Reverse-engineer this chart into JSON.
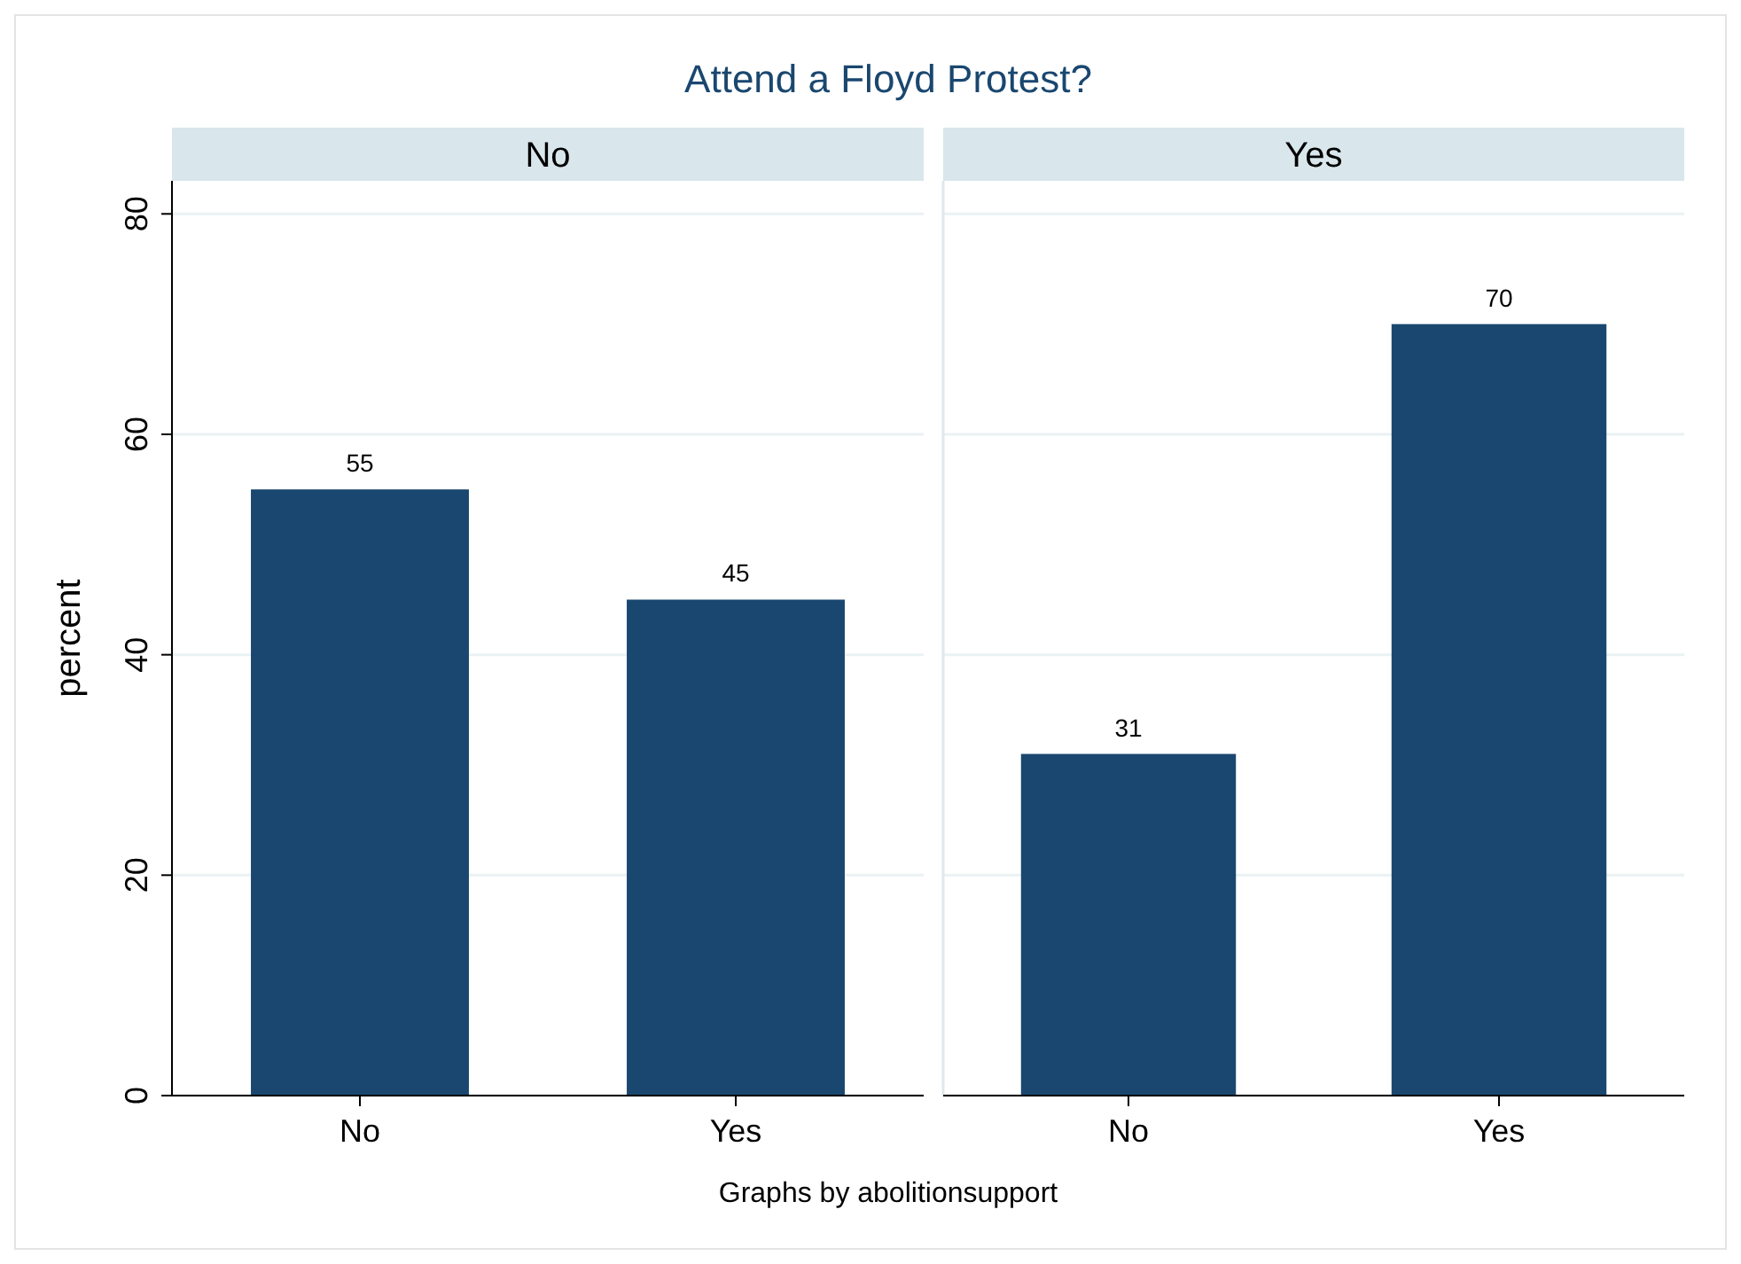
{
  "chart_data": [
    {
      "type": "bar",
      "title": "Attend a Floyd Protest?",
      "subtitle": "No",
      "ylabel": "percent",
      "categories": [
        "No",
        "Yes"
      ],
      "values": [
        55,
        45
      ],
      "color": "#1a476f",
      "ylim": [
        0,
        83
      ],
      "yticks": [
        0,
        20,
        40,
        60,
        80
      ],
      "grid": "y",
      "data_labels": true,
      "annotations": [
        "Graphs by abolitionsupport"
      ]
    },
    {
      "type": "bar",
      "subtitle": "Yes",
      "categories": [
        "No",
        "Yes"
      ],
      "values": [
        31,
        70
      ],
      "color": "#1a476f",
      "ylim": [
        0,
        83
      ],
      "yticks": [
        0,
        20,
        40,
        60,
        80
      ],
      "grid": "y",
      "data_labels": true,
      "tick_labels": "x"
    }
  ]
}
